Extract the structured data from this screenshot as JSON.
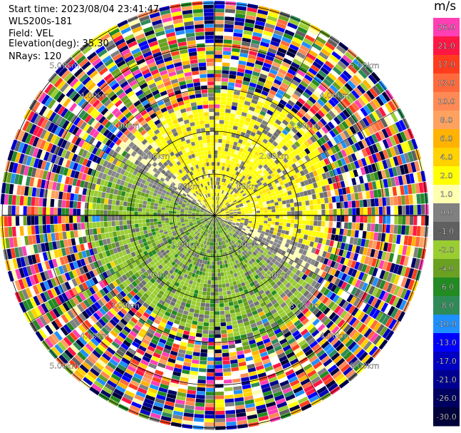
{
  "header": {
    "start_time": "Start time: 2023/08/04 23:41:47",
    "instrument": "WLS200s-181",
    "field": "Field: VEL",
    "elevation": "Elevation(deg): 35.30",
    "nrays": "NRays: 120"
  },
  "colorbar": {
    "unit": "m/s",
    "bins": [
      {
        "label": "26.0",
        "color": "#ff3fb4"
      },
      {
        "label": "21.0",
        "color": "#ff1744"
      },
      {
        "label": "17.0",
        "color": "#ff3d1e"
      },
      {
        "label": "13.0",
        "color": "#ff6a3d"
      },
      {
        "label": "10.0",
        "color": "#ff8a55"
      },
      {
        "label": "8.0",
        "color": "#ffa260"
      },
      {
        "label": "6.0",
        "color": "#ffb300"
      },
      {
        "label": "4.0",
        "color": "#ffd200"
      },
      {
        "label": "2.0",
        "color": "#ffff00"
      },
      {
        "label": "1.0",
        "color": "#ffffb0"
      },
      {
        "label": "0.0",
        "color": "#808080"
      },
      {
        "label": "-1.0",
        "color": "#606060"
      },
      {
        "label": "-2.0",
        "color": "#9acd32"
      },
      {
        "label": "-4.0",
        "color": "#6aa121"
      },
      {
        "label": "-6.0",
        "color": "#228b22"
      },
      {
        "label": "-8.0",
        "color": "#2e8b57"
      },
      {
        "label": "-10.0",
        "color": "#1e90ff"
      },
      {
        "label": "-13.0",
        "color": "#0000ff"
      },
      {
        "label": "-17.0",
        "color": "#0000c0"
      },
      {
        "label": "-21.0",
        "color": "#000090"
      },
      {
        "label": "-26.0",
        "color": "#000060"
      },
      {
        "label": "-30.0",
        "color": "#00003a"
      }
    ]
  },
  "range_rings": {
    "labels": [
      "1.00km",
      "2.00km",
      "3.00km",
      "4.00km",
      "5.00km"
    ]
  },
  "colors": {
    "ring": "#000000",
    "label_text": "#ffffff"
  }
}
